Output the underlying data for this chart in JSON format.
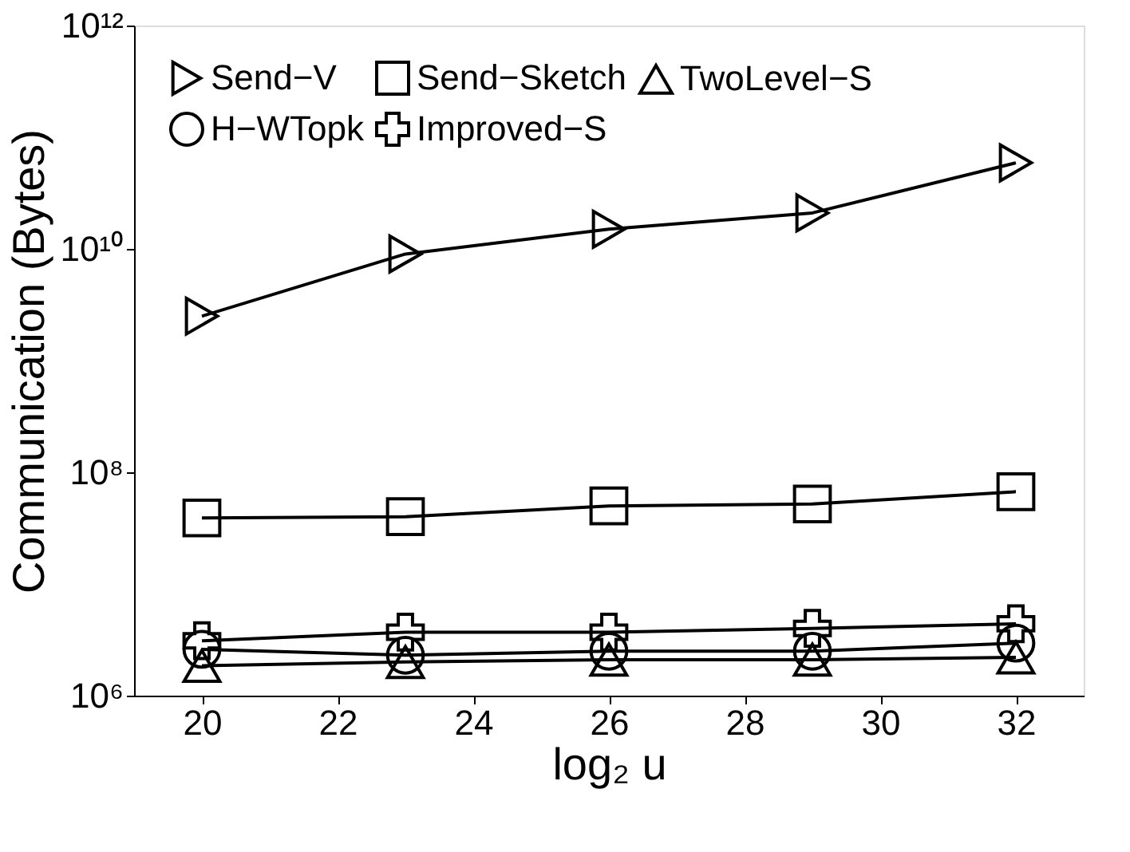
{
  "chart_data": {
    "type": "line",
    "xlabel": "log₂ u",
    "ylabel": "Communication (Bytes)",
    "x": [
      20,
      23,
      26,
      29,
      32
    ],
    "series": [
      {
        "name": "Send−V",
        "color": "#000000",
        "marker": "triangle-right",
        "values": [
          2500000000.0,
          9000000000.0,
          15000000000.0,
          21000000000.0,
          59000000000.0
        ]
      },
      {
        "name": "H−WTopk",
        "color": "#000000",
        "marker": "circle",
        "values": [
          2600000.0,
          2300000.0,
          2500000.0,
          2500000.0,
          2950000.0
        ]
      },
      {
        "name": "Send−Sketch",
        "color": "#000000",
        "marker": "square",
        "values": [
          39000000.0,
          40000000.0,
          50000000.0,
          52000000.0,
          67000000.0
        ]
      },
      {
        "name": "Improved−S",
        "color": "#000000",
        "marker": "cross",
        "values": [
          3100000.0,
          3700000.0,
          3700000.0,
          4000000.0,
          4400000.0
        ]
      },
      {
        "name": "TwoLevel−S",
        "color": "#000000",
        "marker": "triangle",
        "values": [
          1850000.0,
          2000000.0,
          2100000.0,
          2100000.0,
          2200000.0
        ]
      }
    ],
    "xlim": [
      19,
      33
    ],
    "xticks": [
      20,
      22,
      24,
      26,
      28,
      30,
      32
    ],
    "ylim": [
      1000000.0,
      1000000000000.0
    ],
    "yticks": [
      {
        "value": 1000000.0,
        "label": "10⁶"
      },
      {
        "value": 100000000.0,
        "label": "10⁸"
      },
      {
        "value": 10000000000.0,
        "label": "10¹⁰"
      },
      {
        "value": 1000000000000.0,
        "label": "10¹²"
      }
    ],
    "log": "y",
    "grid": false,
    "legend": "top left",
    "line_style": "solid"
  }
}
